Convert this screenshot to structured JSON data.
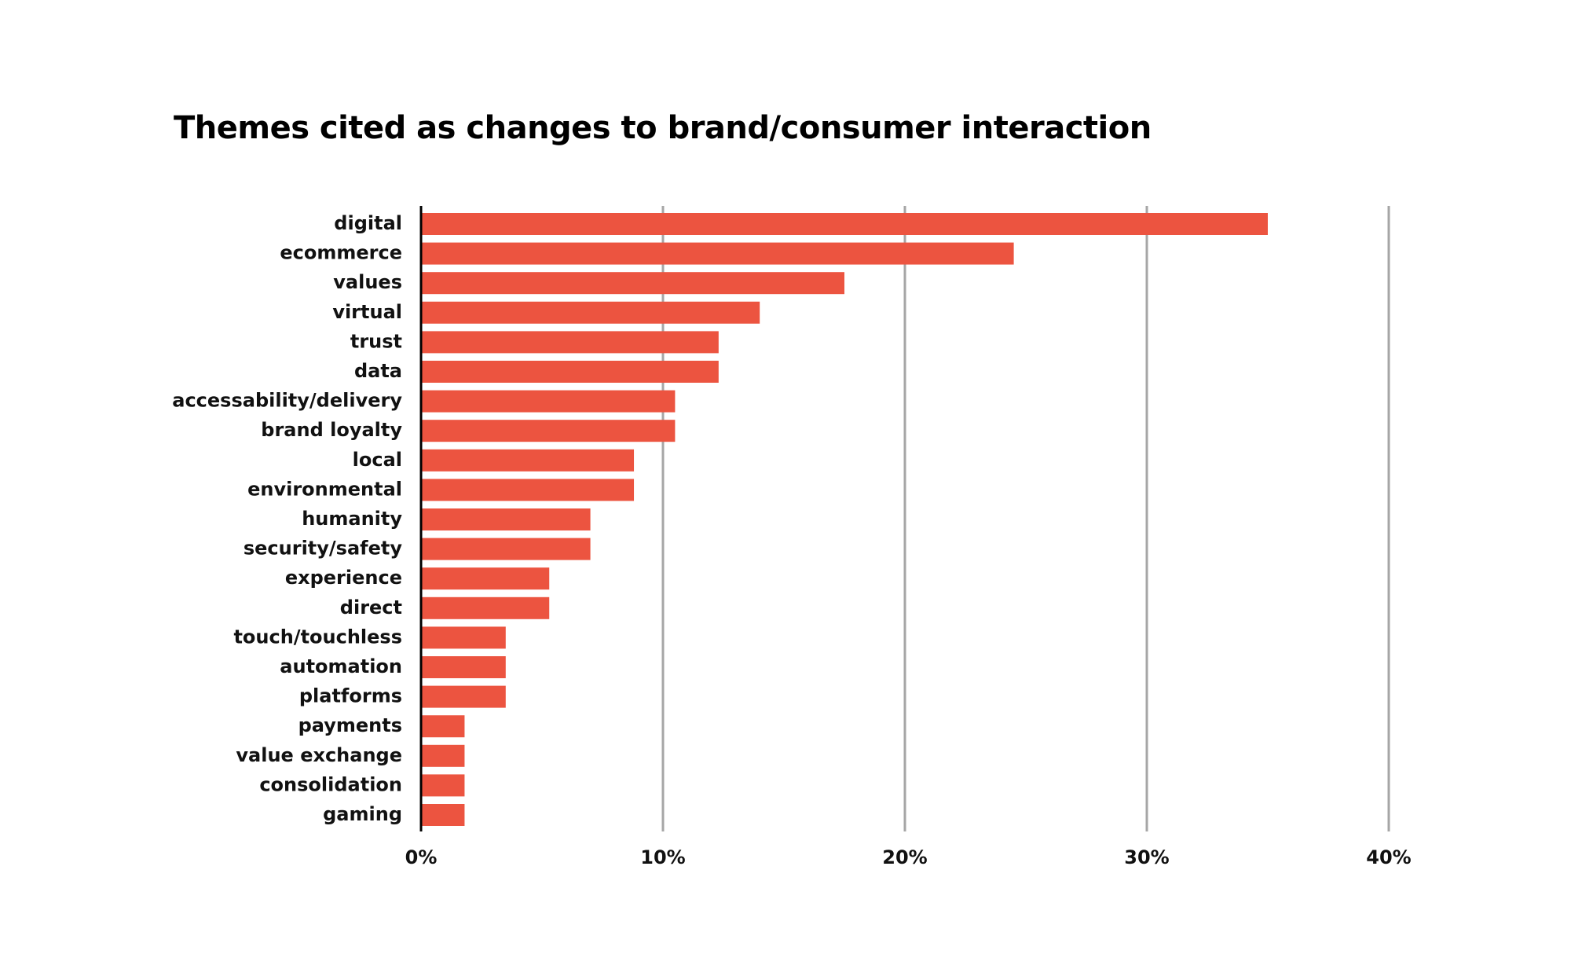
{
  "chart_data": {
    "type": "bar",
    "orientation": "horizontal",
    "title": "Themes cited as changes to brand/consumer interaction",
    "xlabel": "",
    "ylabel": "",
    "xlim": [
      0,
      40
    ],
    "x_ticks": [
      0,
      10,
      20,
      30,
      40
    ],
    "x_tick_labels": [
      "0%",
      "10%",
      "20%",
      "30%",
      "40%"
    ],
    "grid": "vertical",
    "legend": "none",
    "bar_color": "#EC5440",
    "grid_color": "#A6A6A6",
    "axis_color": "#000000",
    "categories": [
      "digital",
      "ecommerce",
      "values",
      "virtual",
      "trust",
      "data",
      "accessability/delivery",
      "brand loyalty",
      "local",
      "environmental",
      "humanity",
      "security/safety",
      "experience",
      "direct",
      "touch/touchless",
      "automation",
      "platforms",
      "payments",
      "value exchange",
      "consolidation",
      "gaming"
    ],
    "values": [
      35,
      24.5,
      17.5,
      14,
      12.3,
      12.3,
      10.5,
      10.5,
      8.8,
      8.8,
      7,
      7,
      5.3,
      5.3,
      3.5,
      3.5,
      3.5,
      1.8,
      1.8,
      1.8,
      1.8
    ]
  }
}
